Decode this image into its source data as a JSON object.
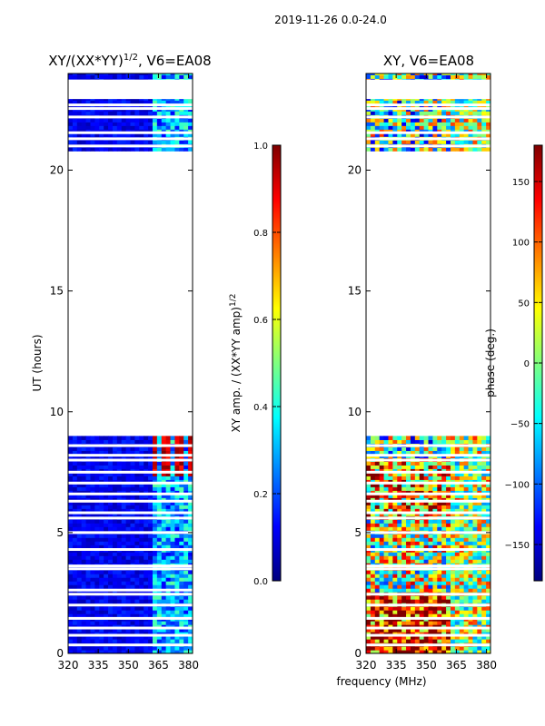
{
  "suptitle": "2019-11-26 0.0-24.0",
  "shared_xlabel": "frequency (MHz)",
  "colors": {
    "jet": [
      "#00007f",
      "#0000ff",
      "#007fff",
      "#00ffff",
      "#7fff7f",
      "#ffff00",
      "#ff7f00",
      "#ff0000",
      "#7f0000"
    ],
    "frame": "#000000",
    "blank": "#ffffff"
  },
  "chart_data": [
    {
      "type": "heatmap",
      "title_main": "XY/(XX*YY)",
      "title_exp": "1/2",
      "title_tail": ", V6=EA08",
      "xlabel": "",
      "ylabel": "UT (hours)",
      "xlim": [
        320,
        382
      ],
      "ylim": [
        0,
        24
      ],
      "xticks": [
        320,
        335,
        350,
        365,
        380
      ],
      "yticks": [
        0,
        5,
        10,
        15,
        20
      ],
      "colorbar": {
        "label_main": "XY amp. / (XX*YY amp)",
        "label_exp": "1/2",
        "range": [
          0.0,
          1.0
        ],
        "ticks": [
          "0.0",
          "0.2",
          "0.4",
          "0.6",
          "0.8",
          "1.0"
        ],
        "tick_values": [
          0.0,
          0.2,
          0.4,
          0.6,
          0.8,
          1.0
        ]
      },
      "data_blocks_hours": [
        [
          0,
          9.0
        ],
        [
          20.8,
          24.0
        ]
      ],
      "gap_rows_hours": [
        0.35,
        0.75,
        1.05,
        1.45,
        2.0,
        2.45,
        2.62,
        3.5,
        3.62,
        4.3,
        5.0,
        5.6,
        5.82,
        6.3,
        6.6,
        7.05,
        7.5,
        8.0,
        8.2,
        8.6,
        23.0,
        22.55,
        22.7,
        22.2,
        21.55,
        21.3,
        21.0
      ]
    },
    {
      "type": "heatmap",
      "title_main": "XY, V6=EA08",
      "xlabel": "",
      "ylabel": "",
      "xlim": [
        320,
        382
      ],
      "ylim": [
        0,
        24
      ],
      "xticks": [
        320,
        335,
        350,
        365,
        380
      ],
      "yticks": [
        0,
        5,
        10,
        15,
        20
      ],
      "colorbar": {
        "label_main": "phase (deg.)",
        "range": [
          -180,
          180
        ],
        "ticks": [
          "−150",
          "−100",
          "−50",
          "0",
          "50",
          "100",
          "150"
        ],
        "tick_values": [
          -150,
          -100,
          -50,
          0,
          50,
          100,
          150
        ]
      },
      "data_blocks_hours": [
        [
          0,
          9.0
        ],
        [
          20.8,
          24.0
        ]
      ],
      "gap_rows_hours": [
        0.35,
        0.75,
        1.05,
        1.45,
        2.0,
        2.45,
        3.5,
        3.62,
        4.3,
        5.0,
        5.6,
        5.82,
        6.3,
        6.6,
        7.05,
        7.5,
        8.0,
        8.2,
        8.6,
        23.0,
        22.55,
        22.7,
        22.2,
        21.55,
        21.3,
        21.0
      ]
    }
  ]
}
